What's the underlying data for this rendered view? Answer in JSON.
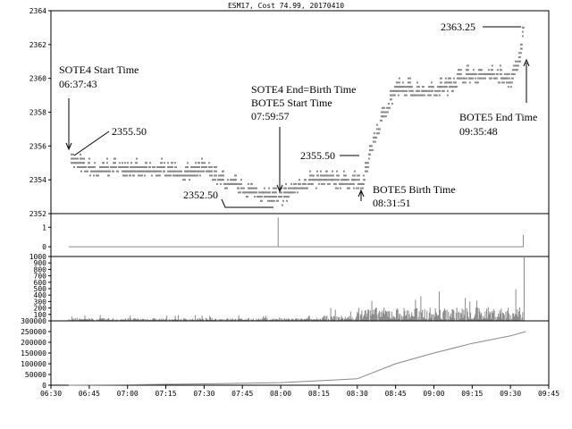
{
  "chart_data": {
    "type": "line",
    "title": "ESM17, Cost 74.99, 20170410",
    "x_axis": {
      "tick_labels": [
        "06:30",
        "06:45",
        "07:00",
        "07:15",
        "07:30",
        "07:45",
        "08:00",
        "08:15",
        "08:30",
        "08:45",
        "09:00",
        "09:15",
        "09:30",
        "09:45"
      ],
      "range": [
        "06:30",
        "09:45"
      ]
    },
    "panels": [
      {
        "name": "price",
        "type": "scatter",
        "ylim": [
          2352,
          2364
        ],
        "yticks": [
          "2352",
          "2354",
          "2356",
          "2358",
          "2360",
          "2362",
          "2364"
        ],
        "anchors": [
          {
            "t": "06:37",
            "p": 2355.5
          },
          {
            "t": "06:40",
            "p": 2355.0
          },
          {
            "t": "06:48",
            "p": 2354.6
          },
          {
            "t": "06:55",
            "p": 2354.9
          },
          {
            "t": "07:05",
            "p": 2354.6
          },
          {
            "t": "07:15",
            "p": 2354.7
          },
          {
            "t": "07:25",
            "p": 2354.4
          },
          {
            "t": "07:30",
            "p": 2354.8
          },
          {
            "t": "07:35",
            "p": 2354.2
          },
          {
            "t": "07:45",
            "p": 2353.6
          },
          {
            "t": "07:52",
            "p": 2353.3
          },
          {
            "t": "07:58",
            "p": 2353.0
          },
          {
            "t": "08:00",
            "p": 2353.0
          },
          {
            "t": "08:05",
            "p": 2353.6
          },
          {
            "t": "08:10",
            "p": 2354.0
          },
          {
            "t": "08:20",
            "p": 2354.1
          },
          {
            "t": "08:28",
            "p": 2354.0
          },
          {
            "t": "08:32",
            "p": 2353.8
          },
          {
            "t": "08:35",
            "p": 2356.0
          },
          {
            "t": "08:40",
            "p": 2358.0
          },
          {
            "t": "08:45",
            "p": 2359.5
          },
          {
            "t": "08:55",
            "p": 2359.4
          },
          {
            "t": "09:05",
            "p": 2359.6
          },
          {
            "t": "09:10",
            "p": 2360.2
          },
          {
            "t": "09:20",
            "p": 2360.4
          },
          {
            "t": "09:30",
            "p": 2360.0
          },
          {
            "t": "09:33",
            "p": 2361.0
          },
          {
            "t": "09:35",
            "p": 2363.25
          }
        ]
      },
      {
        "name": "state",
        "type": "line",
        "ylim": [
          -0.5,
          1.7
        ],
        "yticks": [
          "0",
          "1"
        ],
        "points": [
          {
            "t": "06:37",
            "v": 0
          },
          {
            "t": "07:59",
            "v": 0
          },
          {
            "t": "07:59",
            "v": 1.5
          },
          {
            "t": "07:59",
            "v": 0
          },
          {
            "t": "09:35",
            "v": 0
          },
          {
            "t": "09:35",
            "v": 0.6
          }
        ]
      },
      {
        "name": "volume",
        "type": "bar",
        "ylim": [
          0,
          1000
        ],
        "yticks": [
          "100",
          "200",
          "300",
          "400",
          "500",
          "600",
          "700",
          "800",
          "900",
          "1000"
        ],
        "segments": [
          {
            "from": "06:37",
            "to": "08:16",
            "typical": 30,
            "peak": 90
          },
          {
            "from": "08:16",
            "to": "08:30",
            "typical": 60,
            "peak": 200
          },
          {
            "from": "08:30",
            "to": "09:35",
            "typical": 150,
            "peak": 500
          }
        ]
      },
      {
        "name": "cumulative volume",
        "type": "area",
        "ylim": [
          0,
          300000
        ],
        "yticks": [
          "0",
          "50000",
          "100000",
          "150000",
          "200000",
          "250000",
          "300000"
        ],
        "points": [
          {
            "t": "06:37",
            "v": 0
          },
          {
            "t": "07:00",
            "v": 2000
          },
          {
            "t": "07:30",
            "v": 6000
          },
          {
            "t": "08:00",
            "v": 12000
          },
          {
            "t": "08:30",
            "v": 30000
          },
          {
            "t": "08:45",
            "v": 100000
          },
          {
            "t": "09:00",
            "v": 150000
          },
          {
            "t": "09:15",
            "v": 195000
          },
          {
            "t": "09:30",
            "v": 230000
          },
          {
            "t": "09:36",
            "v": 250000
          }
        ]
      }
    ],
    "annotations": [
      {
        "id": "sote4-start-label",
        "lines": [
          "SOTE4 Start Time",
          "06:37:43"
        ]
      },
      {
        "id": "price-2355-50-left",
        "lines": [
          "2355.50"
        ]
      },
      {
        "id": "sote4-end-label",
        "lines": [
          "SOTE4 End=Birth Time",
          "BOTE5 Start Time",
          "07:59:57"
        ]
      },
      {
        "id": "price-2352-50",
        "lines": [
          "2352.50"
        ]
      },
      {
        "id": "price-2355-50-right",
        "lines": [
          "2355.50"
        ]
      },
      {
        "id": "bote5-birth-label",
        "lines": [
          "BOTE5 Birth Time",
          "08:31:51"
        ]
      },
      {
        "id": "price-2363-25",
        "lines": [
          "2363.25"
        ]
      },
      {
        "id": "bote5-end-label",
        "lines": [
          "BOTE5 End Time",
          "09:35:48"
        ]
      }
    ]
  }
}
